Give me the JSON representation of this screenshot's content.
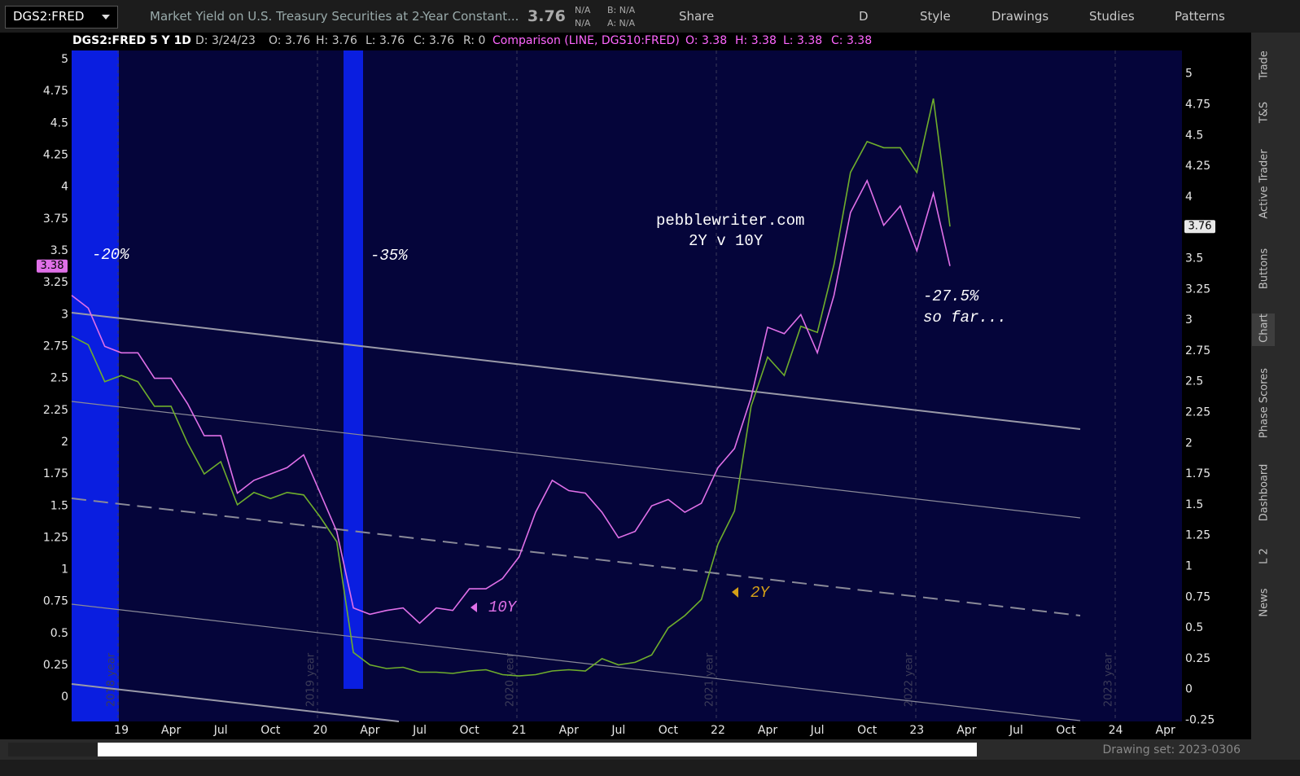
{
  "toolbar": {
    "symbol": "DGS2:FRED",
    "description": "Market Yield on U.S. Treasury Securities at 2-Year Constant...",
    "last": "3.76",
    "net": [
      "N/A",
      "N/A"
    ],
    "bid": "B: N/A",
    "ask": "A: N/A",
    "buttons": [
      "Share",
      "D",
      "Style",
      "Drawings",
      "Studies",
      "Patterns"
    ]
  },
  "status": {
    "items": [
      "DGS2:FRED 5 Y 1D",
      "D: 3/24/23",
      "O: 3.76",
      "H: 3.76",
      "L: 3.76",
      "C: 3.76",
      "R: 0"
    ],
    "comparison": [
      "Comparison (LINE, DGS10:FRED)",
      "O: 3.38",
      "H: 3.38",
      "L: 3.38",
      "C: 3.38"
    ]
  },
  "side_tabs": [
    "Trade",
    "T&S",
    "Active Trader",
    "Buttons",
    "Chart",
    "Phase Scores",
    "Dashboard",
    "L 2",
    "News"
  ],
  "footer": {
    "drawing_set": "Drawing set: 2023-0306"
  },
  "chart_data": {
    "type": "line",
    "x": [
      "2018-10",
      "2018-11",
      "2018-12",
      "2019-01",
      "2019-02",
      "2019-03",
      "2019-04",
      "2019-05",
      "2019-06",
      "2019-07",
      "2019-08",
      "2019-09",
      "2019-10",
      "2019-11",
      "2019-12",
      "2020-01",
      "2020-02",
      "2020-03",
      "2020-04",
      "2020-05",
      "2020-06",
      "2020-07",
      "2020-08",
      "2020-09",
      "2020-10",
      "2020-11",
      "2020-12",
      "2021-01",
      "2021-02",
      "2021-03",
      "2021-04",
      "2021-05",
      "2021-06",
      "2021-07",
      "2021-08",
      "2021-09",
      "2021-10",
      "2021-11",
      "2021-12",
      "2022-01",
      "2022-02",
      "2022-03",
      "2022-04",
      "2022-05",
      "2022-06",
      "2022-07",
      "2022-08",
      "2022-09",
      "2022-10",
      "2022-11",
      "2022-12",
      "2023-01",
      "2023-02",
      "2023-03"
    ],
    "series": [
      {
        "name": "2Y",
        "color": "#6fae2c",
        "axis": "y2",
        "values": [
          2.87,
          2.8,
          2.5,
          2.55,
          2.5,
          2.3,
          2.3,
          2.0,
          1.75,
          1.85,
          1.5,
          1.6,
          1.55,
          1.6,
          1.58,
          1.4,
          1.2,
          0.3,
          0.2,
          0.17,
          0.18,
          0.14,
          0.14,
          0.13,
          0.15,
          0.16,
          0.12,
          0.11,
          0.12,
          0.15,
          0.16,
          0.15,
          0.25,
          0.2,
          0.22,
          0.28,
          0.5,
          0.6,
          0.73,
          1.18,
          1.45,
          2.3,
          2.7,
          2.55,
          2.95,
          2.9,
          3.45,
          4.2,
          4.45,
          4.4,
          4.4,
          4.2,
          4.8,
          3.76
        ]
      },
      {
        "name": "10Y",
        "color": "#e070e8",
        "values": [
          3.15,
          3.05,
          2.75,
          2.7,
          2.7,
          2.5,
          2.5,
          2.3,
          2.05,
          2.05,
          1.6,
          1.7,
          1.75,
          1.8,
          1.9,
          1.6,
          1.3,
          0.7,
          0.65,
          0.68,
          0.7,
          0.58,
          0.7,
          0.68,
          0.85,
          0.85,
          0.93,
          1.1,
          1.45,
          1.7,
          1.62,
          1.6,
          1.45,
          1.25,
          1.3,
          1.5,
          1.55,
          1.45,
          1.52,
          1.8,
          1.95,
          2.35,
          2.9,
          2.85,
          3.0,
          2.7,
          3.15,
          3.8,
          4.05,
          3.7,
          3.85,
          3.5,
          3.95,
          3.38
        ]
      }
    ],
    "xlim": [
      "2018-10",
      "2024-05"
    ],
    "xticks": [
      {
        "value": "2019-01",
        "label": "19"
      },
      {
        "value": "2019-04",
        "label": "Apr"
      },
      {
        "value": "2019-07",
        "label": "Jul"
      },
      {
        "value": "2019-10",
        "label": "Oct"
      },
      {
        "value": "2020-01",
        "label": "20"
      },
      {
        "value": "2020-04",
        "label": "Apr"
      },
      {
        "value": "2020-07",
        "label": "Jul"
      },
      {
        "value": "2020-10",
        "label": "Oct"
      },
      {
        "value": "2021-01",
        "label": "21"
      },
      {
        "value": "2021-04",
        "label": "Apr"
      },
      {
        "value": "2021-07",
        "label": "Jul"
      },
      {
        "value": "2021-10",
        "label": "Oct"
      },
      {
        "value": "2022-01",
        "label": "22"
      },
      {
        "value": "2022-04",
        "label": "Apr"
      },
      {
        "value": "2022-07",
        "label": "Jul"
      },
      {
        "value": "2022-10",
        "label": "Oct"
      },
      {
        "value": "2023-01",
        "label": "23"
      },
      {
        "value": "2023-04",
        "label": "Apr"
      },
      {
        "value": "2023-07",
        "label": "Jul"
      },
      {
        "value": "2023-10",
        "label": "Oct"
      },
      {
        "value": "2024-01",
        "label": "24"
      },
      {
        "value": "2024-04",
        "label": "Apr"
      }
    ],
    "ylim": [
      -0.19,
      5.07
    ],
    "yticks": [
      0,
      0.25,
      0.5,
      0.75,
      1,
      1.25,
      1.5,
      1.75,
      2,
      2.25,
      2.5,
      2.75,
      3,
      3.25,
      3.5,
      3.75,
      4,
      4.25,
      4.5,
      4.75,
      5
    ],
    "y2lim": [
      -0.26,
      5.19
    ],
    "y2ticks": [
      -0.25,
      0,
      0.25,
      0.5,
      0.75,
      1,
      1.25,
      1.5,
      1.75,
      2,
      2.25,
      2.5,
      2.75,
      3,
      3.25,
      3.5,
      3.75,
      4,
      4.25,
      4.5,
      4.75,
      5
    ],
    "year_markers": [
      "2018 year",
      "2019 year",
      "2020 year",
      "2021 year",
      "2022 year",
      "2023 year"
    ],
    "annotations": [
      "-20%",
      "-35%",
      "pebblewriter.com",
      "2Y v 10Y",
      "-27.5%",
      "so far..."
    ]
  }
}
